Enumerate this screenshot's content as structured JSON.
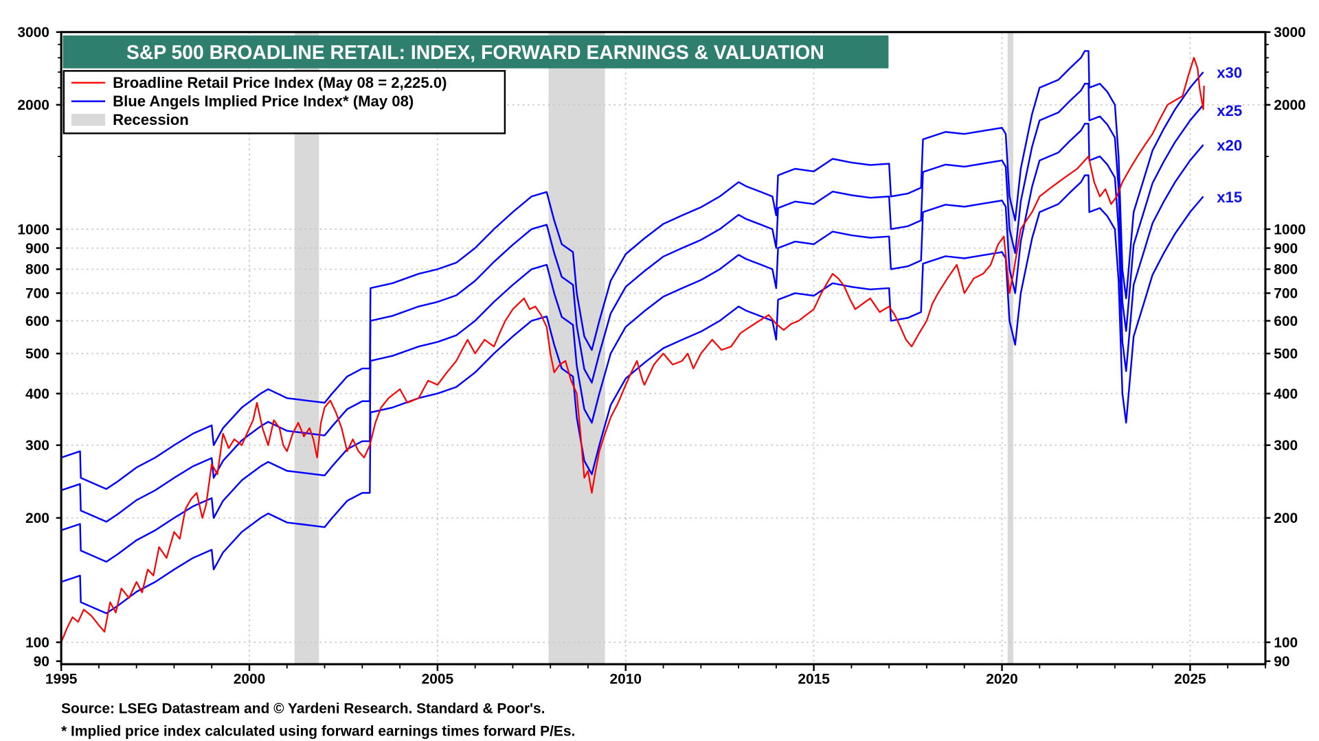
{
  "chart_data": {
    "type": "line",
    "title": "S&P 500 BROADLINE RETAIL: INDEX, FORWARD EARNINGS & VALUATION",
    "yscale": "log",
    "ylim": [
      88.5,
      3000
    ],
    "xlim": [
      1995,
      2027
    ],
    "y_ticks": [
      3000,
      2000,
      1000,
      900,
      800,
      700,
      600,
      500,
      400,
      300,
      200,
      100,
      90
    ],
    "y_tick_labels": [
      "3000",
      "2000",
      "1000",
      "900",
      "800",
      "700",
      "600",
      "500",
      "400",
      "300",
      "200",
      "100",
      "90"
    ],
    "x_ticks": [
      1995,
      2000,
      2005,
      2010,
      2015,
      2020,
      2025
    ],
    "x_tick_labels": [
      "1995",
      "2000",
      "2005",
      "2010",
      "2015",
      "2020",
      "2025"
    ],
    "grid": true,
    "legend": {
      "placement": "top-left",
      "entries": [
        {
          "label": "Broadline Retail Price Index (May 08 = 2,225.0)",
          "color": "#ff0000",
          "kind": "line"
        },
        {
          "label": "Blue Angels Implied Price Index* (May 08)",
          "color": "#0000ff",
          "kind": "line"
        },
        {
          "label": "Recession",
          "color": "#d9d9d9",
          "kind": "box"
        }
      ]
    },
    "recessions": [
      [
        2001.2,
        2001.85
      ],
      [
        2007.95,
        2009.45
      ],
      [
        2020.15,
        2020.3
      ]
    ],
    "price_index": {
      "name": "Broadline Retail Price Index",
      "color": "#ff0000",
      "points": [
        [
          1995.0,
          100
        ],
        [
          1995.15,
          108
        ],
        [
          1995.3,
          115
        ],
        [
          1995.45,
          112
        ],
        [
          1995.6,
          120
        ],
        [
          1995.8,
          116
        ],
        [
          1996.0,
          110
        ],
        [
          1996.15,
          106
        ],
        [
          1996.3,
          125
        ],
        [
          1996.45,
          118
        ],
        [
          1996.6,
          135
        ],
        [
          1996.8,
          128
        ],
        [
          1997.0,
          140
        ],
        [
          1997.15,
          132
        ],
        [
          1997.3,
          150
        ],
        [
          1997.45,
          145
        ],
        [
          1997.6,
          170
        ],
        [
          1997.8,
          160
        ],
        [
          1998.0,
          185
        ],
        [
          1998.15,
          178
        ],
        [
          1998.3,
          210
        ],
        [
          1998.45,
          222
        ],
        [
          1998.6,
          230
        ],
        [
          1998.75,
          200
        ],
        [
          1998.85,
          215
        ],
        [
          1999.0,
          270
        ],
        [
          1999.15,
          255
        ],
        [
          1999.3,
          320
        ],
        [
          1999.45,
          295
        ],
        [
          1999.6,
          310
        ],
        [
          1999.8,
          300
        ],
        [
          2000.0,
          330
        ],
        [
          2000.1,
          345
        ],
        [
          2000.2,
          380
        ],
        [
          2000.35,
          330
        ],
        [
          2000.5,
          300
        ],
        [
          2000.65,
          345
        ],
        [
          2000.8,
          330
        ],
        [
          2000.9,
          300
        ],
        [
          2001.0,
          290
        ],
        [
          2001.15,
          320
        ],
        [
          2001.3,
          340
        ],
        [
          2001.45,
          315
        ],
        [
          2001.6,
          330
        ],
        [
          2001.7,
          310
        ],
        [
          2001.8,
          280
        ],
        [
          2001.9,
          340
        ],
        [
          2002.0,
          370
        ],
        [
          2002.15,
          385
        ],
        [
          2002.3,
          360
        ],
        [
          2002.45,
          330
        ],
        [
          2002.6,
          290
        ],
        [
          2002.75,
          310
        ],
        [
          2002.9,
          290
        ],
        [
          2003.05,
          280
        ],
        [
          2003.2,
          300
        ],
        [
          2003.35,
          340
        ],
        [
          2003.5,
          370
        ],
        [
          2003.7,
          390
        ],
        [
          2004.0,
          410
        ],
        [
          2004.2,
          380
        ],
        [
          2004.5,
          390
        ],
        [
          2004.75,
          430
        ],
        [
          2005.0,
          420
        ],
        [
          2005.25,
          450
        ],
        [
          2005.5,
          480
        ],
        [
          2005.65,
          510
        ],
        [
          2005.8,
          540
        ],
        [
          2006.0,
          500
        ],
        [
          2006.25,
          540
        ],
        [
          2006.5,
          520
        ],
        [
          2006.65,
          560
        ],
        [
          2006.8,
          600
        ],
        [
          2007.0,
          640
        ],
        [
          2007.15,
          660
        ],
        [
          2007.3,
          680
        ],
        [
          2007.45,
          640
        ],
        [
          2007.6,
          650
        ],
        [
          2007.75,
          620
        ],
        [
          2007.9,
          580
        ],
        [
          2008.0,
          500
        ],
        [
          2008.1,
          450
        ],
        [
          2008.25,
          470
        ],
        [
          2008.4,
          480
        ],
        [
          2008.55,
          430
        ],
        [
          2008.7,
          400
        ],
        [
          2008.8,
          320
        ],
        [
          2008.9,
          250
        ],
        [
          2009.0,
          260
        ],
        [
          2009.1,
          230
        ],
        [
          2009.2,
          260
        ],
        [
          2009.3,
          290
        ],
        [
          2009.45,
          320
        ],
        [
          2009.6,
          350
        ],
        [
          2009.8,
          380
        ],
        [
          2010.0,
          420
        ],
        [
          2010.15,
          450
        ],
        [
          2010.3,
          480
        ],
        [
          2010.45,
          430
        ],
        [
          2010.5,
          420
        ],
        [
          2010.75,
          470
        ],
        [
          2011.0,
          500
        ],
        [
          2011.25,
          470
        ],
        [
          2011.5,
          480
        ],
        [
          2011.65,
          500
        ],
        [
          2011.8,
          460
        ],
        [
          2012.0,
          500
        ],
        [
          2012.3,
          540
        ],
        [
          2012.55,
          510
        ],
        [
          2012.8,
          520
        ],
        [
          2013.05,
          560
        ],
        [
          2013.3,
          580
        ],
        [
          2013.55,
          600
        ],
        [
          2013.8,
          620
        ],
        [
          2014.0,
          590
        ],
        [
          2014.2,
          570
        ],
        [
          2014.4,
          590
        ],
        [
          2014.6,
          600
        ],
        [
          2014.8,
          620
        ],
        [
          2015.0,
          640
        ],
        [
          2015.2,
          700
        ],
        [
          2015.35,
          740
        ],
        [
          2015.5,
          780
        ],
        [
          2015.65,
          760
        ],
        [
          2015.8,
          730
        ],
        [
          2015.95,
          680
        ],
        [
          2016.1,
          640
        ],
        [
          2016.3,
          660
        ],
        [
          2016.5,
          680
        ],
        [
          2016.75,
          630
        ],
        [
          2017.0,
          650
        ],
        [
          2017.15,
          620
        ],
        [
          2017.3,
          580
        ],
        [
          2017.45,
          540
        ],
        [
          2017.6,
          520
        ],
        [
          2017.8,
          560
        ],
        [
          2018.0,
          600
        ],
        [
          2018.15,
          660
        ],
        [
          2018.3,
          700
        ],
        [
          2018.55,
          760
        ],
        [
          2018.8,
          820
        ],
        [
          2018.9,
          760
        ],
        [
          2019.0,
          700
        ],
        [
          2019.25,
          760
        ],
        [
          2019.5,
          780
        ],
        [
          2019.7,
          820
        ],
        [
          2019.9,
          920
        ],
        [
          2020.05,
          960
        ],
        [
          2020.2,
          700
        ],
        [
          2020.3,
          780
        ],
        [
          2020.5,
          1000
        ],
        [
          2020.65,
          1050
        ],
        [
          2020.8,
          1100
        ],
        [
          2021.0,
          1200
        ],
        [
          2021.25,
          1250
        ],
        [
          2021.5,
          1300
        ],
        [
          2021.75,
          1350
        ],
        [
          2022.0,
          1400
        ],
        [
          2022.15,
          1450
        ],
        [
          2022.3,
          1500
        ],
        [
          2022.45,
          1300
        ],
        [
          2022.6,
          1200
        ],
        [
          2022.75,
          1250
        ],
        [
          2022.9,
          1150
        ],
        [
          2023.05,
          1200
        ],
        [
          2023.2,
          1300
        ],
        [
          2023.4,
          1400
        ],
        [
          2023.6,
          1500
        ],
        [
          2023.8,
          1600
        ],
        [
          2024.0,
          1700
        ],
        [
          2024.2,
          1850
        ],
        [
          2024.4,
          2000
        ],
        [
          2024.6,
          2050
        ],
        [
          2024.8,
          2100
        ],
        [
          2024.95,
          2350
        ],
        [
          2025.1,
          2600
        ],
        [
          2025.2,
          2450
        ],
        [
          2025.25,
          2200
        ],
        [
          2025.35,
          1950
        ],
        [
          2025.37,
          2225
        ]
      ]
    },
    "implied_index": {
      "name": "Blue Angels Implied Price Index",
      "color": "#0000ff",
      "multiples": [
        30,
        25,
        20,
        15
      ],
      "multiple_labels": [
        "x30",
        "x25",
        "x20",
        "x15"
      ],
      "x30_points": [
        [
          1995.0,
          280
        ],
        [
          1995.5,
          290
        ],
        [
          1995.52,
          250
        ],
        [
          1996.2,
          235
        ],
        [
          1996.5,
          245
        ],
        [
          1997.0,
          265
        ],
        [
          1997.5,
          280
        ],
        [
          1998.0,
          300
        ],
        [
          1998.5,
          320
        ],
        [
          1999.0,
          335
        ],
        [
          1999.05,
          300
        ],
        [
          1999.3,
          330
        ],
        [
          1999.8,
          370
        ],
        [
          2000.3,
          400
        ],
        [
          2000.5,
          410
        ],
        [
          2001.0,
          390
        ],
        [
          2001.5,
          385
        ],
        [
          2002.0,
          380
        ],
        [
          2002.2,
          400
        ],
        [
          2002.6,
          440
        ],
        [
          2003.0,
          460
        ],
        [
          2003.2,
          460
        ],
        [
          2003.22,
          720
        ],
        [
          2003.8,
          740
        ],
        [
          2004.5,
          780
        ],
        [
          2005.0,
          800
        ],
        [
          2005.5,
          830
        ],
        [
          2006.0,
          900
        ],
        [
          2006.5,
          1000
        ],
        [
          2007.0,
          1100
        ],
        [
          2007.5,
          1200
        ],
        [
          2007.9,
          1230
        ],
        [
          2008.1,
          1050
        ],
        [
          2008.3,
          920
        ],
        [
          2008.6,
          880
        ],
        [
          2008.7,
          700
        ],
        [
          2008.9,
          550
        ],
        [
          2009.1,
          510
        ],
        [
          2009.3,
          600
        ],
        [
          2009.6,
          750
        ],
        [
          2010.0,
          870
        ],
        [
          2010.5,
          950
        ],
        [
          2011.0,
          1030
        ],
        [
          2011.5,
          1080
        ],
        [
          2012.0,
          1130
        ],
        [
          2012.5,
          1200
        ],
        [
          2013.0,
          1300
        ],
        [
          2013.2,
          1270
        ],
        [
          2013.6,
          1230
        ],
        [
          2013.9,
          1200
        ],
        [
          2014.0,
          1080
        ],
        [
          2014.05,
          1350
        ],
        [
          2014.5,
          1400
        ],
        [
          2015.0,
          1380
        ],
        [
          2015.5,
          1480
        ],
        [
          2016.0,
          1450
        ],
        [
          2016.5,
          1430
        ],
        [
          2017.0,
          1440
        ],
        [
          2017.05,
          1200
        ],
        [
          2017.5,
          1220
        ],
        [
          2017.85,
          1260
        ],
        [
          2017.9,
          1650
        ],
        [
          2018.5,
          1720
        ],
        [
          2019.0,
          1700
        ],
        [
          2019.5,
          1730
        ],
        [
          2020.0,
          1760
        ],
        [
          2020.1,
          1700
        ],
        [
          2020.2,
          1200
        ],
        [
          2020.35,
          1050
        ],
        [
          2020.5,
          1400
        ],
        [
          2020.8,
          1900
        ],
        [
          2021.0,
          2200
        ],
        [
          2021.5,
          2300
        ],
        [
          2021.8,
          2450
        ],
        [
          2022.1,
          2600
        ],
        [
          2022.2,
          2700
        ],
        [
          2022.3,
          2700
        ],
        [
          2022.32,
          2200
        ],
        [
          2022.6,
          2250
        ],
        [
          2022.8,
          2150
        ],
        [
          2023.0,
          2000
        ],
        [
          2023.1,
          1500
        ],
        [
          2023.2,
          800
        ],
        [
          2023.3,
          680
        ],
        [
          2023.5,
          1100
        ],
        [
          2023.8,
          1350
        ],
        [
          2024.0,
          1550
        ],
        [
          2024.3,
          1750
        ],
        [
          2024.6,
          1950
        ],
        [
          2025.0,
          2200
        ],
        [
          2025.35,
          2400
        ]
      ]
    }
  },
  "footer": {
    "source": "Source: LSEG Datastream and © Yardeni Research. Standard & Poor's.",
    "note": "* Implied price index calculated using forward earnings times forward P/Es."
  }
}
